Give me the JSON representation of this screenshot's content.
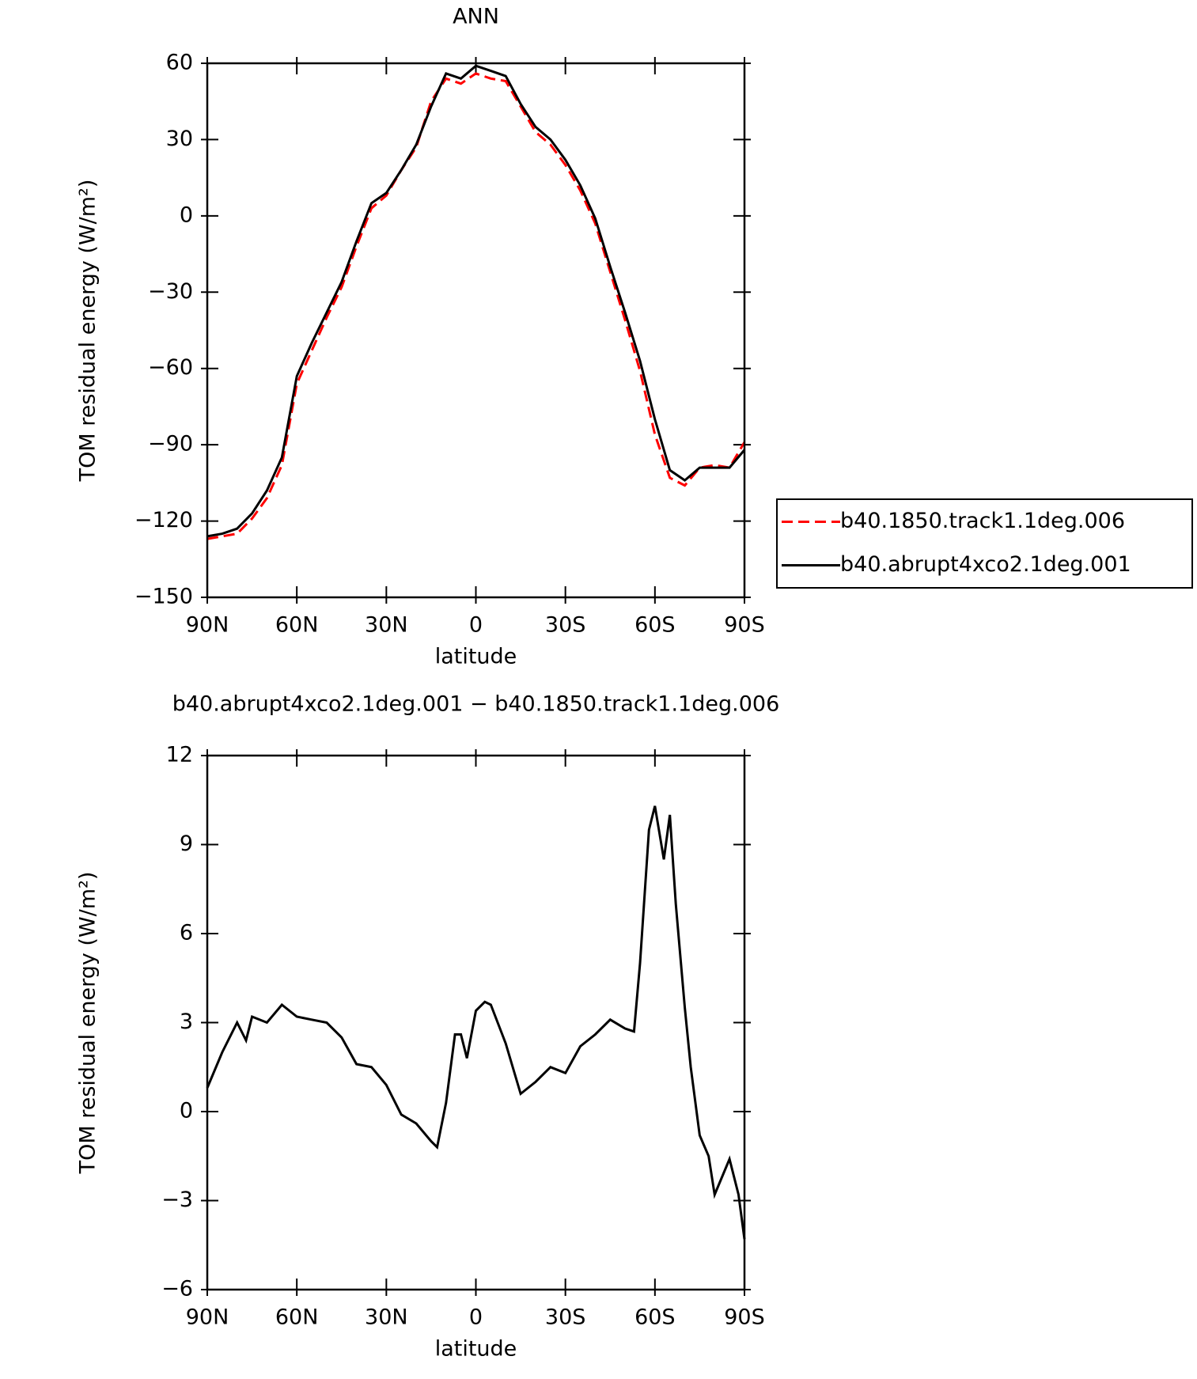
{
  "chart_data": [
    {
      "type": "line",
      "title": "ANN",
      "xlabel": "latitude",
      "ylabel": "TOM residual energy (W/m²)",
      "x": [
        90,
        85,
        80,
        75,
        70,
        65,
        60,
        55,
        50,
        45,
        40,
        35,
        30,
        25,
        20,
        15,
        10,
        5,
        0,
        -5,
        -10,
        -15,
        -20,
        -25,
        -30,
        -35,
        -40,
        -45,
        -50,
        -55,
        -60,
        -65,
        -70,
        -75,
        -80,
        -85,
        -90
      ],
      "series": [
        {
          "name": "b40.1850.track1.1deg.006",
          "color": "#ff0000",
          "dashed": true,
          "values": [
            -127,
            -126,
            -125,
            -119,
            -111,
            -98,
            -66,
            -53,
            -40,
            -28,
            -12,
            3,
            8,
            18,
            27,
            45,
            54,
            52,
            56,
            54,
            53,
            43,
            33,
            28,
            20,
            10,
            -3,
            -22,
            -41,
            -61,
            -86,
            -103,
            -106,
            -99,
            -98,
            -99,
            -89
          ]
        },
        {
          "name": "b40.abrupt4xco2.1deg.001",
          "color": "#000000",
          "dashed": false,
          "values": [
            -126,
            -125,
            -123,
            -117,
            -108,
            -95,
            -63,
            -50,
            -38,
            -26,
            -10,
            5,
            9,
            18,
            28,
            43,
            56,
            54,
            59,
            57,
            55,
            44,
            35,
            30,
            22,
            12,
            -1,
            -20,
            -38,
            -57,
            -80,
            -100,
            -104,
            -99,
            -99,
            -99,
            -92
          ]
        }
      ],
      "xlim": [
        90,
        -90
      ],
      "xticks": [
        {
          "value": 90,
          "label": "90N"
        },
        {
          "value": 60,
          "label": "60N"
        },
        {
          "value": 30,
          "label": "30N"
        },
        0,
        {
          "value": -30,
          "label": "30S"
        },
        {
          "value": -60,
          "label": "60S"
        },
        {
          "value": -90,
          "label": "90S"
        }
      ],
      "ylim": [
        -150,
        60
      ],
      "yticks": [
        {
          "value": -150,
          "label": "−150"
        },
        {
          "value": -120,
          "label": "−120"
        },
        {
          "value": -90,
          "label": "−90"
        },
        {
          "value": -60,
          "label": "−60"
        },
        {
          "value": -30,
          "label": "−30"
        },
        0,
        30,
        60
      ],
      "legend": "outside-right"
    },
    {
      "type": "line",
      "title": "b40.abrupt4xco2.1deg.001 − b40.1850.track1.1deg.006",
      "xlabel": "latitude",
      "ylabel": "TOM residual energy (W/m²)",
      "x": [
        90,
        85,
        80,
        77,
        75,
        70,
        65,
        60,
        55,
        50,
        45,
        40,
        35,
        30,
        25,
        20,
        15,
        13,
        10,
        7,
        5,
        3,
        0,
        -3,
        -5,
        -10,
        -15,
        -20,
        -25,
        -30,
        -35,
        -40,
        -45,
        -50,
        -53,
        -55,
        -58,
        -60,
        -63,
        -65,
        -67,
        -70,
        -72,
        -75,
        -78,
        -80,
        -85,
        -88,
        -90
      ],
      "series": [
        {
          "color": "#000000",
          "dashed": false,
          "values": [
            0.8,
            2.0,
            3.0,
            2.4,
            3.2,
            3.0,
            3.6,
            3.2,
            3.1,
            3.0,
            2.5,
            1.6,
            1.5,
            0.9,
            -0.1,
            -0.4,
            -1.0,
            -1.2,
            0.3,
            2.6,
            2.6,
            1.8,
            3.4,
            3.7,
            3.6,
            2.3,
            0.6,
            1.0,
            1.5,
            1.3,
            2.2,
            2.6,
            3.1,
            2.8,
            2.7,
            5,
            9.5,
            10.3,
            8.5,
            10.0,
            7,
            3.5,
            1.5,
            -0.8,
            -1.5,
            -2.8,
            -1.6,
            -2.8,
            -4.3
          ]
        }
      ],
      "xlim": [
        90,
        -90
      ],
      "xticks": [
        {
          "value": 90,
          "label": "90N"
        },
        {
          "value": 60,
          "label": "60N"
        },
        {
          "value": 30,
          "label": "30N"
        },
        0,
        {
          "value": -30,
          "label": "30S"
        },
        {
          "value": -60,
          "label": "60S"
        },
        {
          "value": -90,
          "label": "90S"
        }
      ],
      "ylim": [
        -6,
        12
      ],
      "yticks": [
        {
          "value": -6,
          "label": "−6"
        },
        {
          "value": -3,
          "label": "−3"
        },
        0,
        3,
        6,
        9,
        12
      ]
    }
  ]
}
